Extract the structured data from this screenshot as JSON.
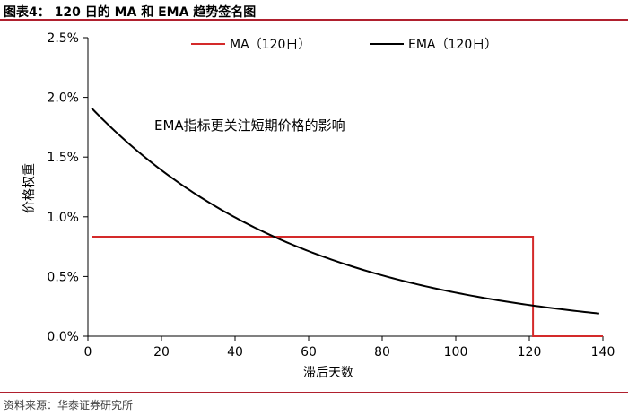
{
  "figure": {
    "label": "图表4：  120 日的 MA 和 EMA 趋势签名图",
    "source": "资料来源：华泰证券研究所"
  },
  "chart_data": {
    "type": "line",
    "title": "",
    "xlabel": "滞后天数",
    "ylabel": "价格权重",
    "xlim": [
      0,
      140
    ],
    "ylim": [
      0,
      0.025
    ],
    "x_ticks": [
      "0",
      "20",
      "40",
      "60",
      "80",
      "100",
      "120",
      "140"
    ],
    "y_ticks": [
      "0.0%",
      "0.5%",
      "1.0%",
      "1.5%",
      "2.0%",
      "2.5%"
    ],
    "grid": false,
    "legend_position": "top",
    "annotation": "EMA指标更关注短期价格的影响",
    "colors": {
      "ma": "#d42a2a",
      "ema": "#000000"
    },
    "series": [
      {
        "name": "MA（120日）",
        "key": "ma",
        "points": [
          [
            1,
            0.00833
          ],
          [
            121,
            0.00833
          ],
          [
            121,
            0.0
          ],
          [
            140,
            0.0
          ]
        ]
      },
      {
        "name": "EMA（120日）",
        "key": "ema",
        "points": [
          [
            1,
            0.0191
          ],
          [
            10,
            0.0164
          ],
          [
            20,
            0.0138
          ],
          [
            30,
            0.0117
          ],
          [
            40,
            0.0099
          ],
          [
            50,
            0.0084
          ],
          [
            60,
            0.0071
          ],
          [
            70,
            0.006
          ],
          [
            80,
            0.005
          ],
          [
            90,
            0.0043
          ],
          [
            100,
            0.0036
          ],
          [
            110,
            0.0031
          ],
          [
            120,
            0.0026
          ],
          [
            130,
            0.0022
          ],
          [
            139,
            0.0019
          ]
        ]
      }
    ]
  }
}
